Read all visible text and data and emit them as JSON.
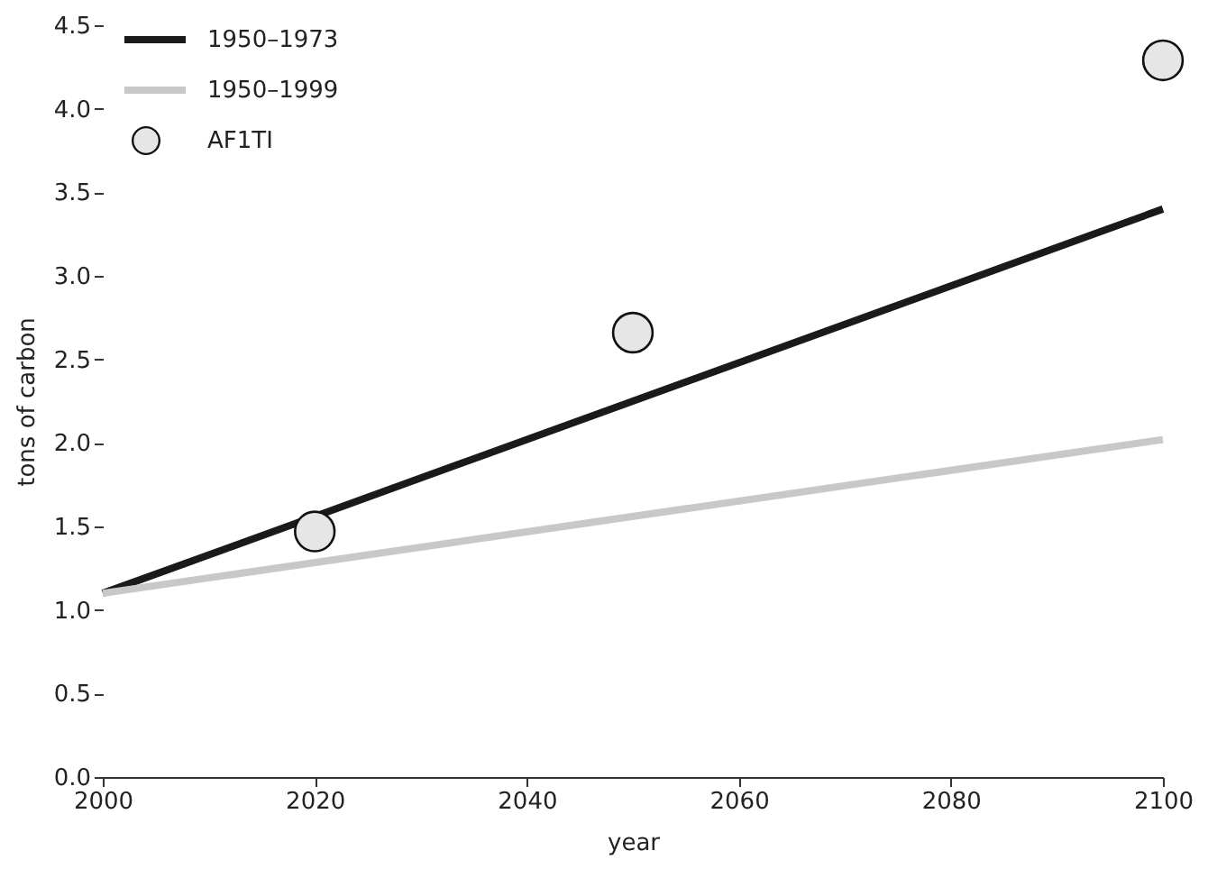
{
  "chart_data": {
    "type": "line",
    "xlabel": "year",
    "ylabel": "tons of carbon",
    "xlim": [
      2000,
      2100
    ],
    "xticks": [
      2000,
      2020,
      2040,
      2060,
      2080,
      2100
    ],
    "ylim": [
      0,
      4.5
    ],
    "yticks": [
      {
        "value": 0,
        "label": "0.0"
      },
      0.5,
      {
        "value": 1,
        "label": "1.0"
      },
      1.5,
      {
        "value": 2,
        "label": "2.0"
      },
      2.5,
      {
        "value": 3,
        "label": "3.0"
      },
      3.5,
      {
        "value": 4,
        "label": "4.0"
      },
      4.5
    ],
    "legend": "top left",
    "grid": false,
    "series": [
      {
        "name": "1950–1973",
        "color": "#1a1a1a",
        "x": [
          2000,
          2100
        ],
        "values": [
          1.1,
          3.4
        ]
      },
      {
        "name": "1950–1999",
        "color": "#c8c8c8",
        "x": [
          2000,
          2100
        ],
        "values": [
          1.1,
          2.02
        ]
      },
      {
        "name": "AF1TI",
        "type": "scatter",
        "marker": "circle",
        "color": "#e6e6e6",
        "x": [
          2020,
          2050,
          2100
        ],
        "values": [
          1.47,
          2.66,
          4.29
        ]
      }
    ]
  }
}
